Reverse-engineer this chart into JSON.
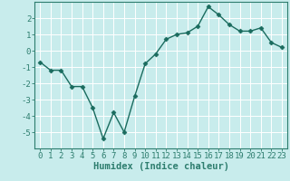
{
  "x": [
    0,
    1,
    2,
    3,
    4,
    5,
    6,
    7,
    8,
    9,
    10,
    11,
    12,
    13,
    14,
    15,
    16,
    17,
    18,
    19,
    20,
    21,
    22,
    23
  ],
  "y": [
    -0.7,
    -1.2,
    -1.2,
    -2.2,
    -2.2,
    -3.5,
    -5.4,
    -3.8,
    -5.0,
    -2.8,
    -0.8,
    -0.2,
    0.7,
    1.0,
    1.1,
    1.5,
    2.7,
    2.2,
    1.6,
    1.2,
    1.2,
    1.4,
    0.5,
    0.2
  ],
  "line_color": "#1a6b5e",
  "marker": "D",
  "marker_size": 2.5,
  "bg_color": "#c8ecec",
  "grid_color": "#ffffff",
  "xlabel": "Humidex (Indice chaleur)",
  "ylim": [
    -6,
    3
  ],
  "xlim": [
    -0.5,
    23.5
  ],
  "yticks": [
    -5,
    -4,
    -3,
    -2,
    -1,
    0,
    1,
    2
  ],
  "xticks": [
    0,
    1,
    2,
    3,
    4,
    5,
    6,
    7,
    8,
    9,
    10,
    11,
    12,
    13,
    14,
    15,
    16,
    17,
    18,
    19,
    20,
    21,
    22,
    23
  ],
  "tick_fontsize": 6.5,
  "xlabel_fontsize": 7.5,
  "line_width": 1.0,
  "spine_color": "#2d7d6e"
}
